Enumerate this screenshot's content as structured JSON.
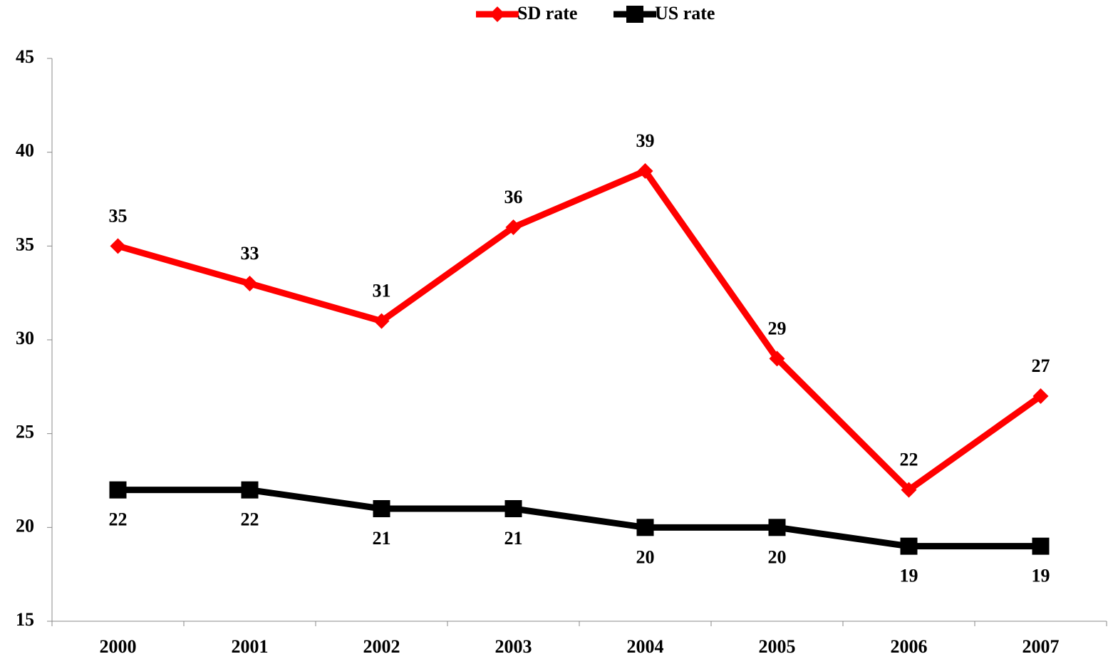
{
  "chart_data": {
    "type": "line",
    "categories": [
      "2000",
      "2001",
      "2002",
      "2003",
      "2004",
      "2005",
      "2006",
      "2007"
    ],
    "series": [
      {
        "name": "SD rate",
        "color": "#ff0000",
        "marker": "diamond",
        "values": [
          35,
          33,
          31,
          36,
          39,
          29,
          22,
          27
        ]
      },
      {
        "name": "US rate",
        "color": "#000000",
        "marker": "square",
        "values": [
          22,
          22,
          21,
          21,
          20,
          20,
          19,
          19
        ]
      }
    ],
    "ylim": [
      15,
      45
    ],
    "yticks": [
      15,
      20,
      25,
      30,
      35,
      40,
      45
    ],
    "grid": false,
    "legend": "top"
  }
}
